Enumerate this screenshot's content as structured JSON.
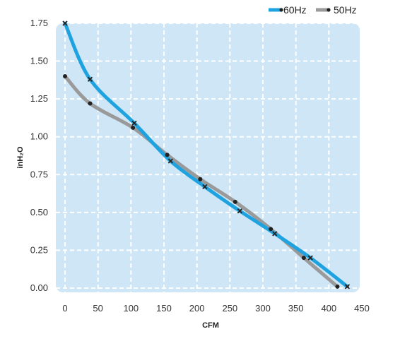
{
  "chart_data": {
    "type": "line",
    "xlabel": "CFM",
    "ylabel": "inH₂O",
    "xlim": [
      0,
      450
    ],
    "ylim": [
      0,
      1.75
    ],
    "x_ticks": [
      "0",
      "50",
      "100",
      "150",
      "200",
      "250",
      "300",
      "350",
      "400",
      "450"
    ],
    "y_ticks": [
      "0.00",
      "0.25",
      "0.50",
      "0.75",
      "1.00",
      "1.25",
      "1.50",
      "1.75"
    ],
    "grid": true,
    "legend_position": "top-right",
    "background_color": "#cfe6f7",
    "series": [
      {
        "name": "60Hz",
        "color": "#1fa3e0",
        "marker": "x",
        "x": [
          0,
          38,
          105,
          160,
          212,
          265,
          318,
          372,
          428
        ],
        "y": [
          1.75,
          1.38,
          1.09,
          0.84,
          0.67,
          0.51,
          0.36,
          0.2,
          0.01
        ]
      },
      {
        "name": "50Hz",
        "color": "#9a9a9a",
        "marker": "dot",
        "x": [
          0,
          38,
          103,
          155,
          205,
          258,
          312,
          362,
          413
        ],
        "y": [
          1.4,
          1.22,
          1.06,
          0.88,
          0.72,
          0.57,
          0.39,
          0.2,
          0.01
        ]
      }
    ]
  }
}
